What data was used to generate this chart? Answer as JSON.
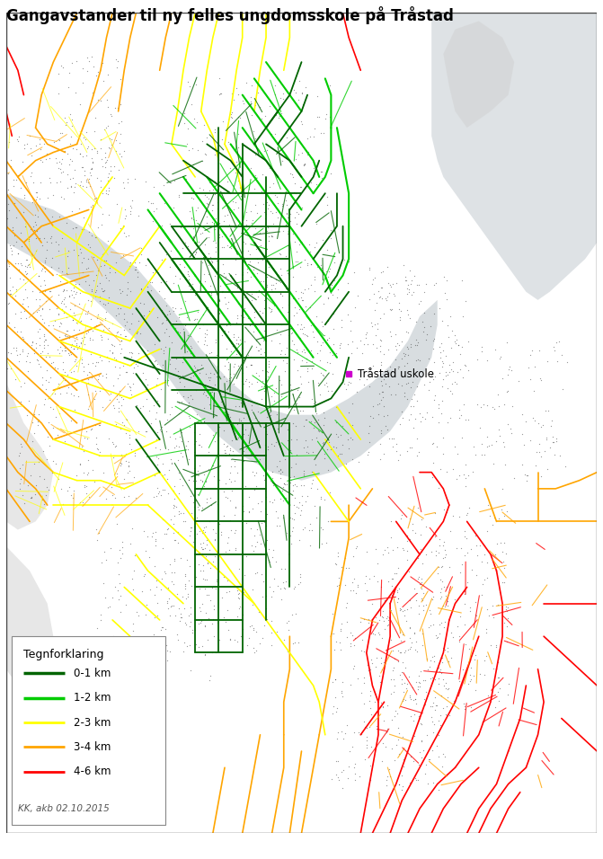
{
  "title": "Gangavstander til ny felles ungdomsskole på Tråstad",
  "title_fontsize": 12,
  "title_weight": "bold",
  "legend_title": "Tegnforklaring",
  "legend_items": [
    {
      "label": "0-1 km",
      "color": "#006400",
      "lw": 2.5
    },
    {
      "label": "1-2 km",
      "color": "#00cc00",
      "lw": 2.5
    },
    {
      "label": "2-3 km",
      "color": "#ffff00",
      "lw": 2.0
    },
    {
      "label": "3-4 km",
      "color": "#ffa500",
      "lw": 2.0
    },
    {
      "label": "4-6 km",
      "color": "#ff0000",
      "lw": 2.0
    }
  ],
  "annotation_text": "Tråstad uskole",
  "credit_text": "KK, akb 02.10.2015",
  "background_color": "#ffffff",
  "map_background": "#ffffff",
  "fig_w": 6.71,
  "fig_h": 9.56
}
